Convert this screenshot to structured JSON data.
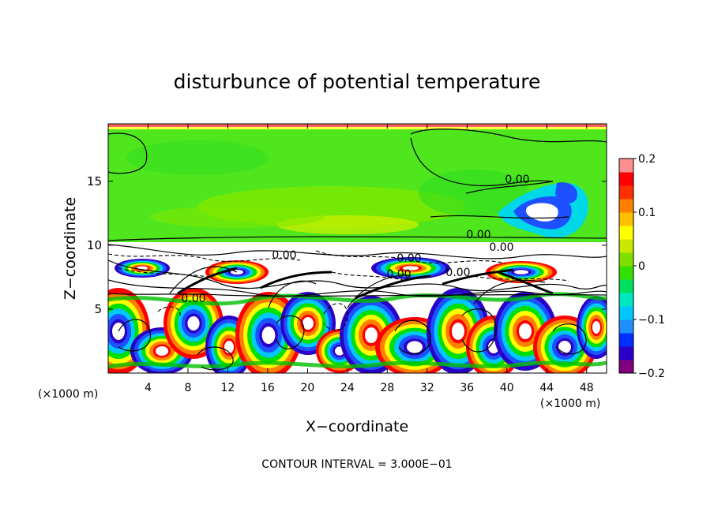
{
  "chart_data": {
    "type": "heatmap",
    "title": "disturbunce of potential temperature",
    "xlabel": "X−coordinate",
    "ylabel": "Z−coordinate",
    "x_unit_left": "(×1000 m)",
    "x_unit_right": "(×1000 m)",
    "xlim": [
      0,
      50
    ],
    "ylim": [
      0,
      19.5
    ],
    "x_ticks": [
      4,
      8,
      12,
      16,
      20,
      24,
      28,
      32,
      36,
      40,
      44,
      48
    ],
    "x_tick_labels": [
      "4",
      "8",
      "12",
      "16",
      "20",
      "24",
      "28",
      "32",
      "36",
      "40",
      "44",
      "48"
    ],
    "y_ticks": [
      5,
      10,
      15
    ],
    "y_tick_labels": [
      "5",
      "10",
      "15"
    ],
    "colorbar": {
      "range": [
        -0.2,
        0.2
      ],
      "ticks": [
        0.2,
        0.1,
        0,
        -0.1,
        -0.2
      ],
      "tick_labels": [
        "0.2",
        "0.1",
        "0",
        "−0.1",
        "−0.2"
      ],
      "colors": [
        "#800080",
        "#2a00c8",
        "#0030ff",
        "#1e90ff",
        "#00c8ff",
        "#00e8c0",
        "#00e060",
        "#33e000",
        "#7fe000",
        "#c8e800",
        "#ffff00",
        "#ffc000",
        "#ff8000",
        "#ff3000",
        "#ff0000",
        "#ff9090"
      ]
    },
    "contour_labels": [
      "0.00",
      "0.00",
      "0.00",
      "0.00",
      "0.00",
      "0.00",
      "0.00",
      "0.00"
    ],
    "annotation": "CONTOUR INTERVAL = 3.000E−01",
    "grid": false
  },
  "colors": {
    "upper_green": "#4fe61e",
    "upper_green_light": "#7fe800",
    "upper_green_deep": "#2fdc1e",
    "yellowish": "#c8f000",
    "band_white": "#ffffff"
  }
}
